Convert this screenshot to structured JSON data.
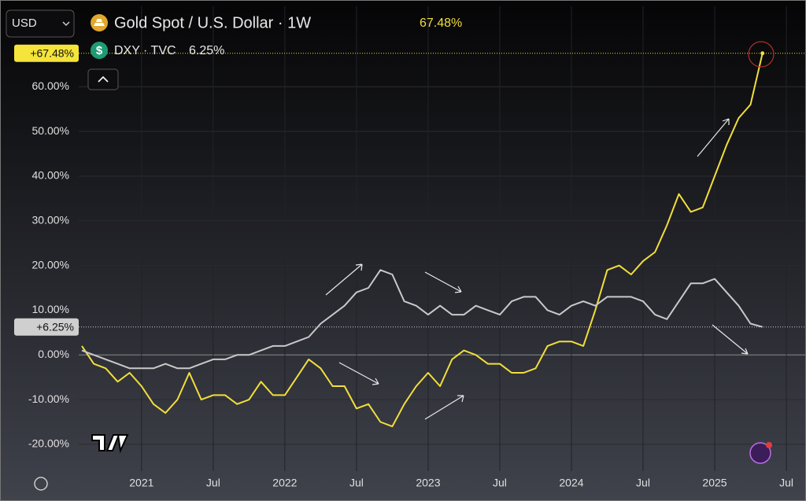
{
  "chart_data": {
    "type": "line",
    "currency": "USD",
    "categories": [
      null,
      null,
      null,
      null,
      null,
      "2021",
      null,
      null,
      null,
      null,
      null,
      "Jul",
      null,
      null,
      null,
      null,
      null,
      "2022",
      null,
      null,
      null,
      null,
      null,
      "Jul",
      null,
      null,
      null,
      null,
      null,
      "2023",
      null,
      null,
      null,
      null,
      null,
      "Jul",
      null,
      null,
      null,
      null,
      null,
      "2024",
      null,
      null,
      null,
      null,
      null,
      "Jul",
      null,
      null,
      null,
      null,
      null,
      "2025",
      null,
      null,
      null,
      null,
      null,
      "Jul"
    ],
    "series": [
      {
        "name": "Gold Spot / U.S. Dollar · 1W",
        "color": "#f2df3a",
        "legend_value": "67.48%",
        "last_label": "+67.48%",
        "values": [
          2,
          -2,
          -3,
          -6,
          -4,
          -7,
          -11,
          -13,
          -10,
          -4,
          -10,
          -9,
          -9,
          -11,
          -10,
          -6,
          -9,
          -9,
          -5,
          -1,
          -3,
          -7,
          -7,
          -12,
          -11,
          -15,
          -16,
          -11,
          -7,
          -4,
          -7,
          -1,
          1,
          0,
          -2,
          -2,
          -4,
          -4,
          -3,
          2,
          3,
          3,
          2,
          10,
          19,
          20,
          18,
          21,
          23,
          29,
          36,
          32,
          33,
          40,
          47,
          53,
          56,
          67.48,
          null,
          null
        ]
      },
      {
        "name": "DXY · TVC",
        "color": "#c9c9c9",
        "legend_value": "6.25%",
        "last_label": "+6.25%",
        "values": [
          1,
          0,
          -1,
          -2,
          -3,
          -3,
          -3,
          -2,
          -3,
          -3,
          -2,
          -1,
          -1,
          0,
          0,
          1,
          2,
          2,
          3,
          4,
          7,
          9,
          11,
          14,
          15,
          19,
          18,
          12,
          11,
          9,
          11,
          9,
          9,
          11,
          10,
          9,
          12,
          13,
          13,
          10,
          9,
          11,
          12,
          11,
          13,
          13,
          13,
          12,
          9,
          8,
          12,
          16,
          16,
          17,
          14,
          11,
          7,
          6.25,
          null,
          null
        ]
      }
    ],
    "ylim": [
      -26,
      78
    ],
    "yticks": [
      {
        "value": -20,
        "label": "-20.00%"
      },
      {
        "value": -10,
        "label": "-10.00%"
      },
      {
        "value": 0,
        "label": "0.00%"
      },
      {
        "value": 10,
        "label": "10.00%"
      },
      {
        "value": 20,
        "label": "20.00%"
      },
      {
        "value": 30,
        "label": "30.00%"
      },
      {
        "value": 40,
        "label": "40.00%"
      },
      {
        "value": 50,
        "label": "50.00%"
      },
      {
        "value": 60,
        "label": "60.00%"
      }
    ],
    "grid": true
  }
}
